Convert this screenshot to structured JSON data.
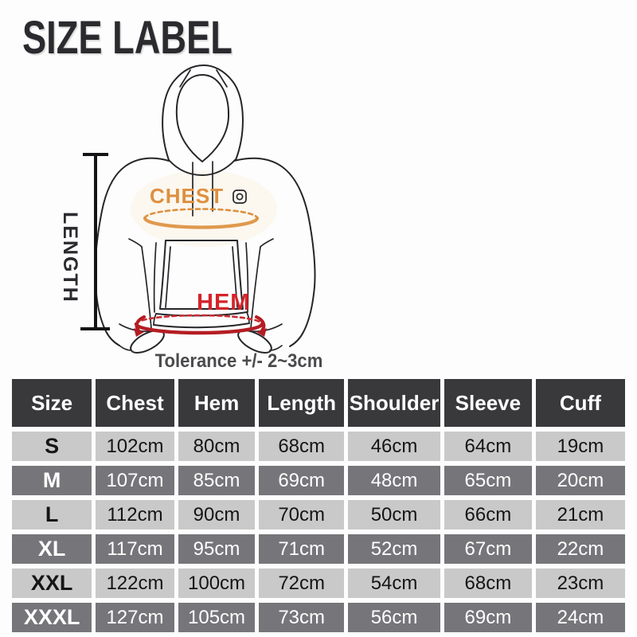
{
  "page": {
    "background": "#fdfdfd"
  },
  "title": "SIZE LABEL",
  "diagram": {
    "subject": "hoodie-front-view",
    "length_label": "LENGTH",
    "chest_label": "CHEST",
    "hem_label": "HEM",
    "tolerance_note": "Tolerance +/- 2~3cm",
    "colors": {
      "page_bg": "#fdfdfd",
      "ink": "#2b2b2f",
      "outline": "#26262a",
      "chest_accent": "#dd9040",
      "hem_accent": "#cd2b32",
      "hem_solid": "#b41d23",
      "hem_text": "#d5232a"
    }
  },
  "chart_data": {
    "type": "table",
    "title": "SIZE LABEL",
    "note": "Tolerance +/- 2~3cm",
    "unit": "cm",
    "columns": [
      "Size",
      "Chest",
      "Hem",
      "Length",
      "Shoulder",
      "Sleeve",
      "Cuff"
    ],
    "rows": [
      {
        "size": "S",
        "values": [
          "102cm",
          "80cm",
          "68cm",
          "46cm",
          "64cm",
          "19cm"
        ]
      },
      {
        "size": "M",
        "values": [
          "107cm",
          "85cm",
          "69cm",
          "48cm",
          "65cm",
          "20cm"
        ]
      },
      {
        "size": "L",
        "values": [
          "112cm",
          "90cm",
          "70cm",
          "50cm",
          "66cm",
          "21cm"
        ]
      },
      {
        "size": "XL",
        "values": [
          "117cm",
          "95cm",
          "71cm",
          "52cm",
          "67cm",
          "22cm"
        ]
      },
      {
        "size": "XXL",
        "values": [
          "122cm",
          "100cm",
          "72cm",
          "54cm",
          "68cm",
          "23cm"
        ]
      },
      {
        "size": "XXXL",
        "values": [
          "127cm",
          "105cm",
          "73cm",
          "56cm",
          "69cm",
          "24cm"
        ]
      }
    ],
    "styles": {
      "header_bg": "#39393c",
      "header_text": "#ffffff",
      "row_light_bg": "#c9c9c9",
      "row_light_text": "#151515",
      "row_dark_bg": "#76767a",
      "row_dark_text": "#ffffff"
    }
  }
}
